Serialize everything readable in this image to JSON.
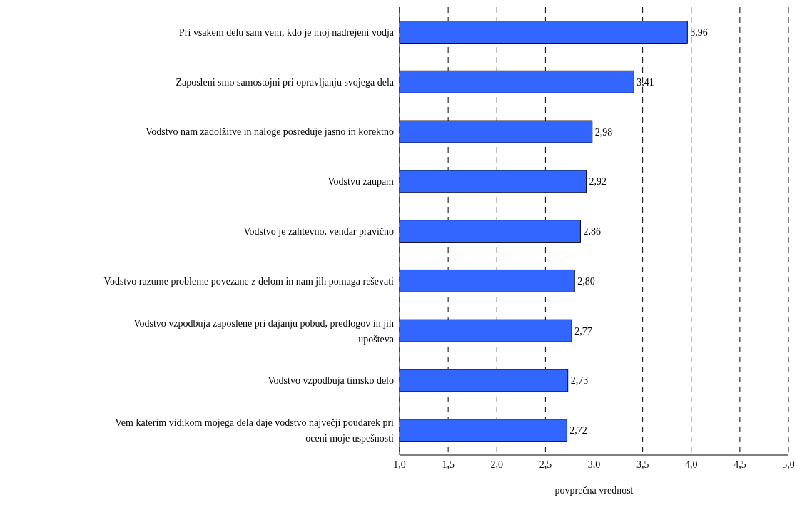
{
  "chart_data": {
    "type": "bar",
    "orientation": "horizontal",
    "xlabel": "povprečna vrednost",
    "categories": [
      "Pri vsakem delu sam vem, kdo je moj nadrejeni vodja",
      "Zaposleni smo samostojni pri opravljanju svojega dela",
      "Vodstvo nam zadolžitve in naloge posreduje jasno in korektno",
      "Vodstvu zaupam",
      "Vodstvo je zahtevno, vendar pravično",
      "Vodstvo razume probleme povezane z delom in nam jih pomaga reševati",
      "Vodstvo vzpodbuja zaposlene  pri dajanju pobud, predlogov in jih upošteva",
      "Vodstvo vzpodbuja timsko delo",
      "Vem katerim vidikom mojega dela daje vodstvo največji poudarek pri oceni moje uspešnosti"
    ],
    "values": [
      3.96,
      3.41,
      2.98,
      2.92,
      2.86,
      2.8,
      2.77,
      2.73,
      2.72
    ],
    "value_labels": [
      "3,96",
      "3,41",
      "2,98",
      "2,92",
      "2,86",
      "2,80",
      "2,77",
      "2,73",
      "2,72"
    ],
    "color": "#3366ff",
    "xlim": [
      1,
      5
    ],
    "xticks": [
      {
        "value": 1,
        "label": "1,0"
      },
      {
        "value": 1.5,
        "label": "1,5"
      },
      {
        "value": 2,
        "label": "2,0"
      },
      {
        "value": 2.5,
        "label": "2,5"
      },
      {
        "value": 3,
        "label": "3,0"
      },
      {
        "value": 3.5,
        "label": "3,5"
      },
      {
        "value": 4,
        "label": "4,0"
      },
      {
        "value": 4.5,
        "label": "4,5"
      },
      {
        "value": 5,
        "label": "5,0"
      }
    ],
    "grid": "x",
    "legend": false
  }
}
